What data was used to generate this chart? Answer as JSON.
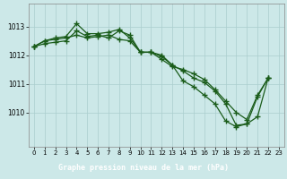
{
  "background_color": "#cce8e8",
  "plot_bg_color": "#cce8e8",
  "bottom_bar_color": "#3a6e3a",
  "line_color": "#1a5c1a",
  "grid_color": "#aacece",
  "marker": "+",
  "markersize": 4,
  "linewidth": 0.9,
  "markeredgewidth": 1.0,
  "xlim": [
    -0.5,
    23.5
  ],
  "ylim": [
    1008.8,
    1013.8
  ],
  "yticks": [
    1010,
    1011,
    1012,
    1013
  ],
  "xticks": [
    0,
    1,
    2,
    3,
    4,
    5,
    6,
    7,
    8,
    9,
    10,
    11,
    12,
    13,
    14,
    15,
    16,
    17,
    18,
    19,
    20,
    21,
    22,
    23
  ],
  "xlabel": "Graphe pression niveau de la mer (hPa)",
  "xlabel_color": "#ffffff",
  "xlabel_bg": "#3a6e3a",
  "tick_fontsize": 5.5,
  "xlabel_fontsize": 6.0,
  "series": [
    [
      1012.3,
      1012.5,
      1012.6,
      1012.65,
      1013.1,
      1012.75,
      1012.75,
      1012.8,
      1012.9,
      1012.6,
      1012.1,
      1012.1,
      1012.0,
      1011.65,
      1011.1,
      1010.9,
      1010.6,
      1010.3,
      1009.7,
      1009.5,
      1009.6,
      1009.85,
      1011.2,
      null
    ],
    [
      1012.3,
      1012.5,
      1012.55,
      1012.6,
      1012.7,
      1012.6,
      1012.65,
      1012.7,
      1012.55,
      1012.5,
      1012.1,
      1012.1,
      1011.95,
      1011.65,
      1011.45,
      1011.2,
      1011.05,
      1010.75,
      1010.3,
      1009.55,
      1009.6,
      1010.55,
      1011.2,
      null
    ],
    [
      1012.3,
      1012.4,
      1012.45,
      1012.5,
      1012.85,
      1012.65,
      1012.7,
      1012.6,
      1012.85,
      1012.7,
      1012.1,
      1012.1,
      1011.85,
      1011.6,
      1011.5,
      1011.35,
      1011.15,
      1010.8,
      1010.4,
      1010.0,
      1009.75,
      1010.6,
      1011.2,
      null
    ]
  ]
}
